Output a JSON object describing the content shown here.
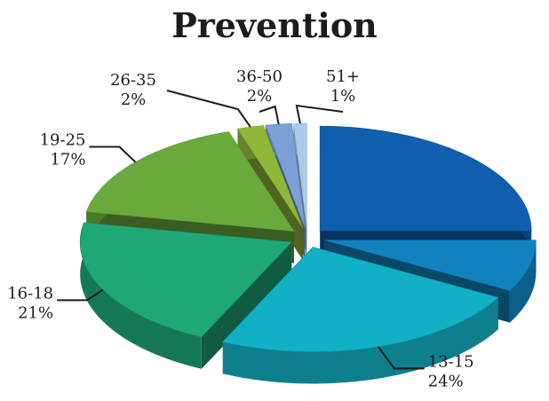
{
  "chart_data": {
    "type": "pie",
    "title": "Prevention",
    "categories": [
      "",
      "",
      "13-15",
      "16-18",
      "19-25",
      "26-35",
      "36-50",
      "51+"
    ],
    "values": [
      25,
      8,
      24,
      21,
      17,
      2,
      2,
      1
    ],
    "value_labels": [
      "",
      "",
      "24%",
      "21%",
      "17%",
      "2%",
      "2%",
      "1%"
    ],
    "colors": [
      "#0f5fae",
      "#1282bf",
      "#12b0c4",
      "#1fa876",
      "#6aaa3d",
      "#8fb83a",
      "#7c9fd8",
      "#a9cbe9"
    ],
    "exploded": true,
    "three_d": true
  }
}
